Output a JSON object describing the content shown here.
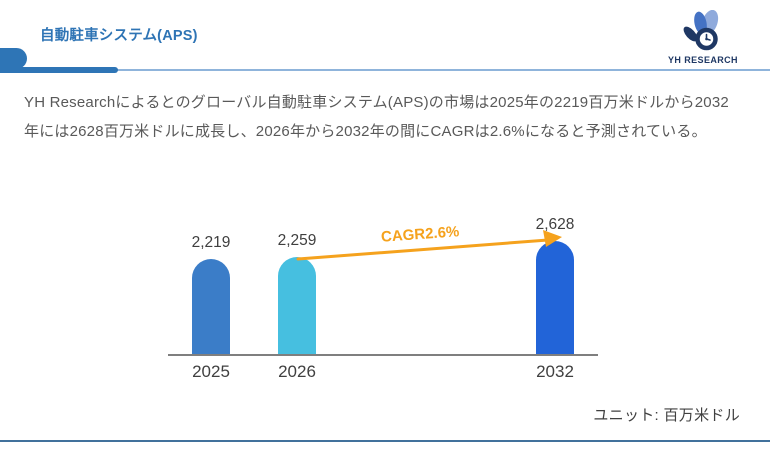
{
  "header": {
    "title": "自動駐車システム(APS)",
    "logo_text": "YH RESEARCH"
  },
  "summary": {
    "line1": "YH Researchによるとのグローバル自動駐車システム(APS)の市場は2025年の2219百万米ドルから2032",
    "line2": "年には2628百万米ドルに成長し、2026年から2032年の間にCAGRは2.6%になると予測されている。"
  },
  "chart_data": {
    "type": "bar",
    "title": "",
    "categories": [
      "2025",
      "2026",
      "2032"
    ],
    "values": [
      2219,
      2259,
      2628
    ],
    "value_labels": [
      "2,219",
      "2,259",
      "2,628"
    ],
    "annotation": "CAGR2.6%",
    "unit_note": "ユニット: 百万米ドル",
    "ylim": [
      0,
      2800
    ],
    "grid": false,
    "legend": false,
    "bar_colors": [
      "#3B7DC8",
      "#46BFE0",
      "#2264D8"
    ],
    "annotation_color": "#F5A21D",
    "axis_color": "#7F7F7F"
  },
  "colors": {
    "title_blue": "#2E74B5",
    "accent_blue": "#2E75B6",
    "header_line": "#8FB4DB",
    "footer_line": "#41719C",
    "body_text": "#595959",
    "chart_text": "#404040",
    "logo_navy": "#1F3864",
    "logo_medium": "#4472C4",
    "logo_light": "#8FAADC"
  }
}
